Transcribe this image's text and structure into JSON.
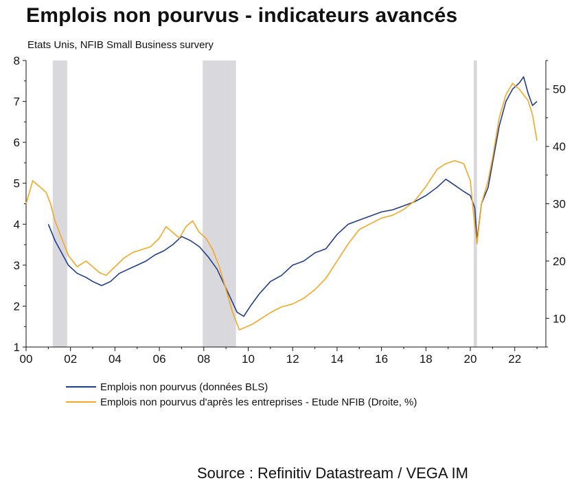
{
  "chart_data": {
    "type": "line",
    "title": "Emplois non pourvus - indicateurs avancés",
    "subtitle": "Etats Unis, NFIB Small Business survery",
    "x_tick_labels": [
      "00",
      "02",
      "04",
      "06",
      "08",
      "10",
      "12",
      "14",
      "16",
      "18",
      "20",
      "22"
    ],
    "xlim": [
      2000,
      2023.4
    ],
    "ylim_left": [
      1,
      8
    ],
    "y_ticks_left": [
      "1",
      "2",
      "3",
      "4",
      "5",
      "6",
      "7",
      "8"
    ],
    "ylim_right": [
      5,
      55
    ],
    "y_ticks_right": [
      "10",
      "20",
      "30",
      "40",
      "50"
    ],
    "recessions": [
      [
        2001.2,
        2001.85
      ],
      [
        2007.95,
        2009.45
      ],
      [
        2020.15,
        2020.3
      ]
    ],
    "series": [
      {
        "name": "Emplois non pourvus (données BLS)",
        "axis": "left",
        "color": "#1f3c88",
        "x": [
          2001.0,
          2001.3,
          2001.6,
          2001.9,
          2002.3,
          2002.7,
          2003.0,
          2003.4,
          2003.8,
          2004.2,
          2004.6,
          2005.0,
          2005.4,
          2005.8,
          2006.2,
          2006.6,
          2007.0,
          2007.4,
          2007.8,
          2008.2,
          2008.6,
          2008.9,
          2009.2,
          2009.5,
          2009.8,
          2010.1,
          2010.5,
          2011.0,
          2011.5,
          2012.0,
          2012.5,
          2013.0,
          2013.5,
          2014.0,
          2014.5,
          2015.0,
          2015.5,
          2016.0,
          2016.5,
          2017.0,
          2017.5,
          2018.0,
          2018.5,
          2018.9,
          2019.3,
          2019.7,
          2020.0,
          2020.2,
          2020.3,
          2020.5,
          2020.8,
          2021.0,
          2021.3,
          2021.6,
          2021.9,
          2022.2,
          2022.4,
          2022.6,
          2022.8,
          2023.0
        ],
        "values": [
          4.0,
          3.6,
          3.3,
          3.0,
          2.8,
          2.7,
          2.6,
          2.5,
          2.6,
          2.8,
          2.9,
          3.0,
          3.1,
          3.25,
          3.35,
          3.5,
          3.7,
          3.6,
          3.45,
          3.2,
          2.9,
          2.55,
          2.2,
          1.85,
          1.75,
          2.0,
          2.3,
          2.6,
          2.75,
          3.0,
          3.1,
          3.3,
          3.4,
          3.75,
          4.0,
          4.1,
          4.2,
          4.3,
          4.35,
          4.45,
          4.55,
          4.7,
          4.9,
          5.1,
          4.95,
          4.8,
          4.7,
          4.4,
          3.6,
          4.5,
          4.9,
          5.5,
          6.4,
          7.0,
          7.3,
          7.45,
          7.6,
          7.2,
          6.9,
          7.0
        ]
      },
      {
        "name": "Emplois non pourvus d'après les entreprises - Etude NFIB (Droite, %)",
        "axis": "right",
        "color": "#f5a623",
        "x": [
          2000.0,
          2000.3,
          2000.6,
          2000.9,
          2001.1,
          2001.3,
          2001.6,
          2001.9,
          2002.3,
          2002.7,
          2003.0,
          2003.3,
          2003.6,
          2004.0,
          2004.4,
          2004.8,
          2005.2,
          2005.6,
          2006.0,
          2006.3,
          2006.6,
          2006.9,
          2007.2,
          2007.5,
          2007.8,
          2008.1,
          2008.4,
          2008.7,
          2009.0,
          2009.3,
          2009.6,
          2009.9,
          2010.2,
          2010.6,
          2011.0,
          2011.5,
          2012.0,
          2012.5,
          2013.0,
          2013.5,
          2014.0,
          2014.5,
          2015.0,
          2015.5,
          2016.0,
          2016.5,
          2017.0,
          2017.5,
          2018.0,
          2018.5,
          2018.9,
          2019.3,
          2019.7,
          2020.0,
          2020.15,
          2020.3,
          2020.5,
          2020.8,
          2021.0,
          2021.3,
          2021.6,
          2021.9,
          2022.2,
          2022.4,
          2022.6,
          2022.8,
          2023.0
        ],
        "values": [
          30,
          34,
          33,
          32,
          30,
          27,
          24,
          21,
          19,
          20,
          19,
          18,
          17.5,
          19,
          20.5,
          21.5,
          22,
          22.5,
          24,
          26,
          25,
          24,
          26,
          27,
          25,
          24,
          22,
          19,
          15,
          11,
          8,
          8.5,
          9,
          10,
          11,
          12,
          12.5,
          13.5,
          15,
          17,
          20,
          23,
          25.5,
          26.5,
          27.5,
          28,
          29,
          30.5,
          33,
          36,
          37,
          37.5,
          37,
          34,
          28,
          23,
          30,
          34,
          38,
          45,
          49,
          51,
          50,
          49,
          48,
          45.5,
          41
        ]
      }
    ]
  },
  "source": "Source : Refinitiv Datastream / VEGA IM"
}
